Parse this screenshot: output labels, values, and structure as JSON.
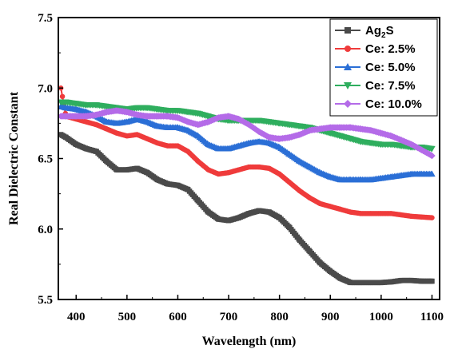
{
  "chart_data": {
    "type": "line",
    "title": "",
    "xlabel": "Wavelength (nm)",
    "ylabel": "Real Dielectric Constant",
    "xlim": [
      365,
      1115
    ],
    "ylim": [
      5.5,
      7.5
    ],
    "x_ticks": [
      400,
      500,
      600,
      700,
      800,
      900,
      1000,
      1100
    ],
    "x_tick_labels": [
      "400",
      "500",
      "600",
      "700",
      "800",
      "900",
      "1000",
      "1100"
    ],
    "y_ticks": [
      5.5,
      6.0,
      6.5,
      7.0,
      7.5
    ],
    "y_tick_labels": [
      "5.5",
      "6.0",
      "6.5",
      "7.0",
      "7.5"
    ],
    "grid": false,
    "legend_position": "top-right",
    "series": [
      {
        "name": "Ag2S",
        "legend_main": "Ag",
        "legend_sub": "2",
        "legend_tail": "S",
        "color": "#4a4a4a",
        "marker": "square",
        "x": [
          370,
          380,
          400,
          420,
          440,
          460,
          480,
          500,
          520,
          540,
          560,
          580,
          600,
          620,
          640,
          660,
          680,
          700,
          720,
          740,
          760,
          780,
          800,
          820,
          840,
          860,
          880,
          900,
          920,
          940,
          960,
          980,
          1000,
          1020,
          1040,
          1060,
          1080,
          1100
        ],
        "y": [
          6.67,
          6.65,
          6.6,
          6.57,
          6.55,
          6.48,
          6.42,
          6.42,
          6.43,
          6.4,
          6.35,
          6.32,
          6.31,
          6.28,
          6.2,
          6.12,
          6.07,
          6.06,
          6.08,
          6.11,
          6.13,
          6.12,
          6.08,
          6.01,
          5.92,
          5.84,
          5.76,
          5.7,
          5.65,
          5.62,
          5.62,
          5.62,
          5.62,
          5.625,
          5.635,
          5.635,
          5.63,
          5.63
        ]
      },
      {
        "name": "Ce: 2.5%",
        "color": "#ef3b3b",
        "marker": "circle",
        "x": [
          370,
          380,
          400,
          420,
          440,
          460,
          480,
          500,
          520,
          540,
          560,
          580,
          600,
          620,
          640,
          660,
          680,
          700,
          720,
          740,
          760,
          780,
          800,
          820,
          840,
          860,
          880,
          900,
          920,
          940,
          960,
          980,
          1000,
          1020,
          1040,
          1060,
          1080,
          1100
        ],
        "y": [
          7.0,
          6.8,
          6.78,
          6.76,
          6.74,
          6.71,
          6.68,
          6.66,
          6.67,
          6.64,
          6.61,
          6.59,
          6.59,
          6.55,
          6.48,
          6.42,
          6.39,
          6.4,
          6.42,
          6.44,
          6.44,
          6.43,
          6.39,
          6.33,
          6.27,
          6.22,
          6.18,
          6.16,
          6.14,
          6.12,
          6.11,
          6.11,
          6.11,
          6.11,
          6.1,
          6.09,
          6.085,
          6.08
        ]
      },
      {
        "name": "Ce: 5.0%",
        "color": "#2b6fd6",
        "marker": "triangle-up",
        "x": [
          370,
          380,
          400,
          420,
          440,
          460,
          480,
          500,
          520,
          540,
          560,
          580,
          600,
          620,
          640,
          660,
          680,
          700,
          720,
          740,
          760,
          780,
          800,
          820,
          840,
          860,
          880,
          900,
          920,
          940,
          960,
          980,
          1000,
          1020,
          1040,
          1060,
          1080,
          1100
        ],
        "y": [
          6.87,
          6.86,
          6.85,
          6.83,
          6.8,
          6.76,
          6.75,
          6.76,
          6.78,
          6.76,
          6.73,
          6.72,
          6.72,
          6.7,
          6.66,
          6.6,
          6.57,
          6.57,
          6.59,
          6.61,
          6.62,
          6.61,
          6.58,
          6.53,
          6.48,
          6.44,
          6.4,
          6.37,
          6.35,
          6.35,
          6.35,
          6.35,
          6.36,
          6.37,
          6.38,
          6.39,
          6.39,
          6.39
        ]
      },
      {
        "name": "Ce: 7.5%",
        "color": "#2fae5e",
        "marker": "triangle-down",
        "x": [
          370,
          380,
          400,
          420,
          440,
          460,
          480,
          500,
          520,
          540,
          560,
          580,
          600,
          620,
          640,
          660,
          680,
          700,
          720,
          740,
          760,
          780,
          800,
          820,
          840,
          860,
          880,
          900,
          920,
          940,
          960,
          980,
          1000,
          1020,
          1040,
          1060,
          1080,
          1100
        ],
        "y": [
          6.9,
          6.9,
          6.89,
          6.88,
          6.88,
          6.87,
          6.86,
          6.85,
          6.86,
          6.86,
          6.85,
          6.84,
          6.84,
          6.83,
          6.82,
          6.8,
          6.78,
          6.77,
          6.77,
          6.77,
          6.77,
          6.76,
          6.75,
          6.74,
          6.73,
          6.72,
          6.7,
          6.68,
          6.66,
          6.64,
          6.62,
          6.61,
          6.6,
          6.6,
          6.59,
          6.58,
          6.58,
          6.57
        ]
      },
      {
        "name": "Ce: 10.0%",
        "color": "#b46be8",
        "marker": "diamond",
        "x": [
          370,
          380,
          400,
          420,
          440,
          460,
          480,
          500,
          520,
          540,
          560,
          580,
          600,
          620,
          640,
          660,
          680,
          700,
          720,
          740,
          760,
          780,
          800,
          820,
          840,
          860,
          880,
          900,
          920,
          940,
          960,
          980,
          1000,
          1020,
          1040,
          1060,
          1080,
          1100
        ],
        "y": [
          6.8,
          6.8,
          6.8,
          6.8,
          6.81,
          6.83,
          6.84,
          6.83,
          6.81,
          6.8,
          6.8,
          6.8,
          6.79,
          6.76,
          6.74,
          6.76,
          6.79,
          6.8,
          6.78,
          6.74,
          6.69,
          6.65,
          6.64,
          6.65,
          6.67,
          6.7,
          6.71,
          6.72,
          6.72,
          6.72,
          6.71,
          6.7,
          6.68,
          6.66,
          6.63,
          6.6,
          6.56,
          6.52
        ]
      }
    ]
  }
}
